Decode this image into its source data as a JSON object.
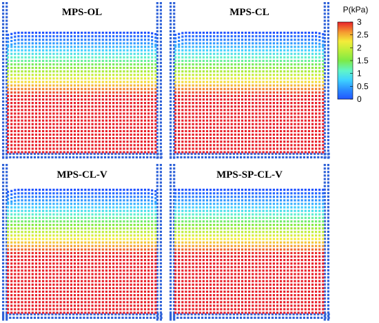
{
  "panels": [
    {
      "title": "MPS-OL",
      "variant": "OL"
    },
    {
      "title": "MPS-CL",
      "variant": "CL"
    },
    {
      "title": "MPS-CL-V",
      "variant": "CLV"
    },
    {
      "title": "MPS-SP-CL-V",
      "variant": "SPCLV"
    }
  ],
  "colorbar": {
    "title": "P(kPa)",
    "ticks": [
      "3",
      "2.5",
      "2",
      "1.5",
      "1",
      "0.5",
      "0"
    ],
    "min": 0,
    "max": 3
  },
  "colors": {
    "wall": "#2f62d8",
    "low": "#1f5bff",
    "high": "#e8212a"
  }
}
